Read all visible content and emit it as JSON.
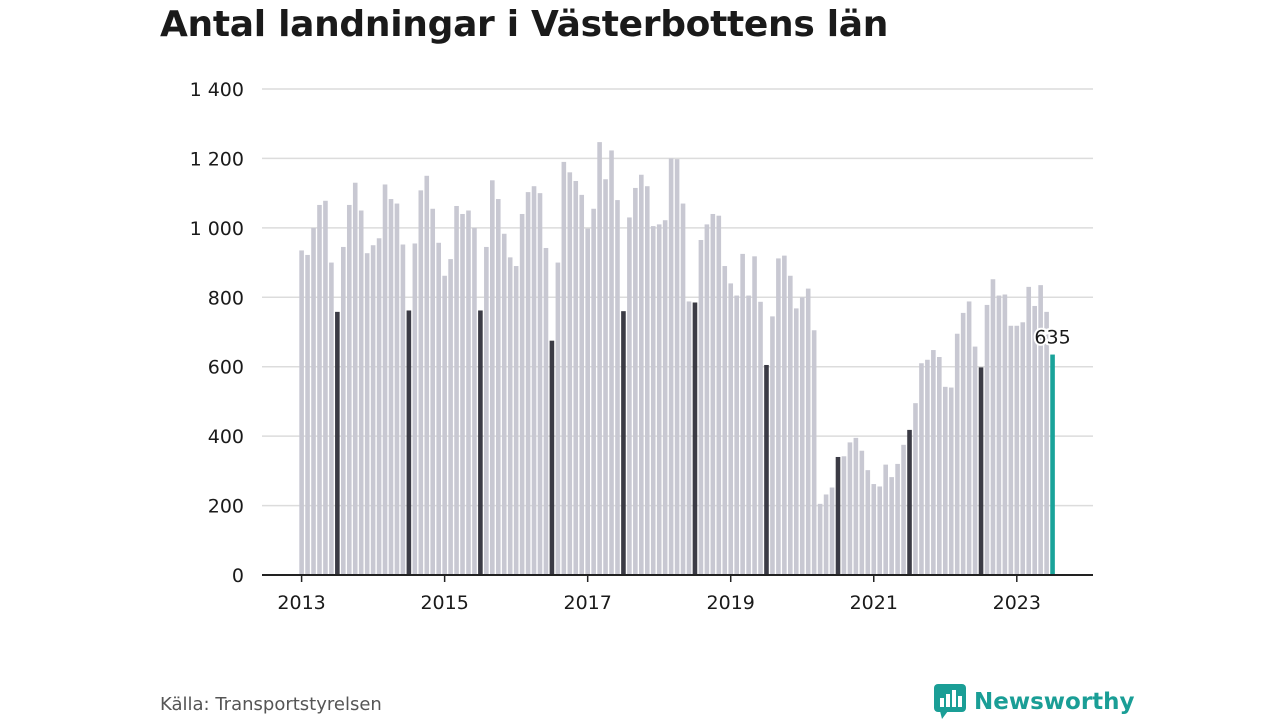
{
  "title": "Antal landningar i Västerbottens län",
  "source": "Källa: Transportstyrelsen",
  "brand": "Newsworthy",
  "colors": {
    "bar": "#c8c8d2",
    "july": "#3b3b45",
    "latest": "#1aa39a",
    "grid": "#dcdcdc",
    "axis": "#222222",
    "brand": "#1a9e96"
  },
  "chart_data": {
    "type": "bar",
    "title": "Antal landningar i Västerbottens län",
    "xlabel": "",
    "ylabel": "",
    "ylim": [
      0,
      1400
    ],
    "yticks": [
      0,
      200,
      400,
      600,
      800,
      1000,
      1200,
      1400
    ],
    "ytick_labels": [
      "0",
      "200",
      "400",
      "600",
      "800",
      "1 000",
      "1 200",
      "1 400"
    ],
    "xticks": [
      "2013",
      "2015",
      "2017",
      "2019",
      "2021",
      "2023"
    ],
    "grid": true,
    "start": "2013-01",
    "end": "2023-07",
    "highlight": "July of each year shown in dark color",
    "latest_label": "635",
    "values": [
      935,
      922,
      1000,
      1066,
      1078,
      900,
      758,
      945,
      1066,
      1130,
      1050,
      927,
      950,
      970,
      1125,
      1083,
      1070,
      952,
      762,
      955,
      1108,
      1150,
      1055,
      957,
      862,
      910,
      1063,
      1040,
      1050,
      1000,
      762,
      945,
      1137,
      1083,
      983,
      915,
      890,
      1040,
      1103,
      1120,
      1100,
      942,
      675,
      900,
      1190,
      1160,
      1135,
      1095,
      998,
      1055,
      1247,
      1140,
      1223,
      1080,
      760,
      1030,
      1115,
      1153,
      1120,
      1005,
      1010,
      1022,
      1200,
      1198,
      1070,
      788,
      785,
      965,
      1010,
      1040,
      1035,
      890,
      840,
      805,
      925,
      805,
      918,
      787,
      605,
      745,
      912,
      920,
      862,
      768,
      800,
      825,
      705,
      205,
      232,
      252,
      340,
      342,
      382,
      395,
      358,
      302,
      262,
      255,
      318,
      282,
      320,
      375,
      418,
      495,
      610,
      620,
      648,
      628,
      542,
      540,
      695,
      755,
      788,
      658,
      598,
      778,
      852,
      805,
      808,
      718,
      718,
      728,
      830,
      775,
      835,
      758,
      635
    ]
  }
}
